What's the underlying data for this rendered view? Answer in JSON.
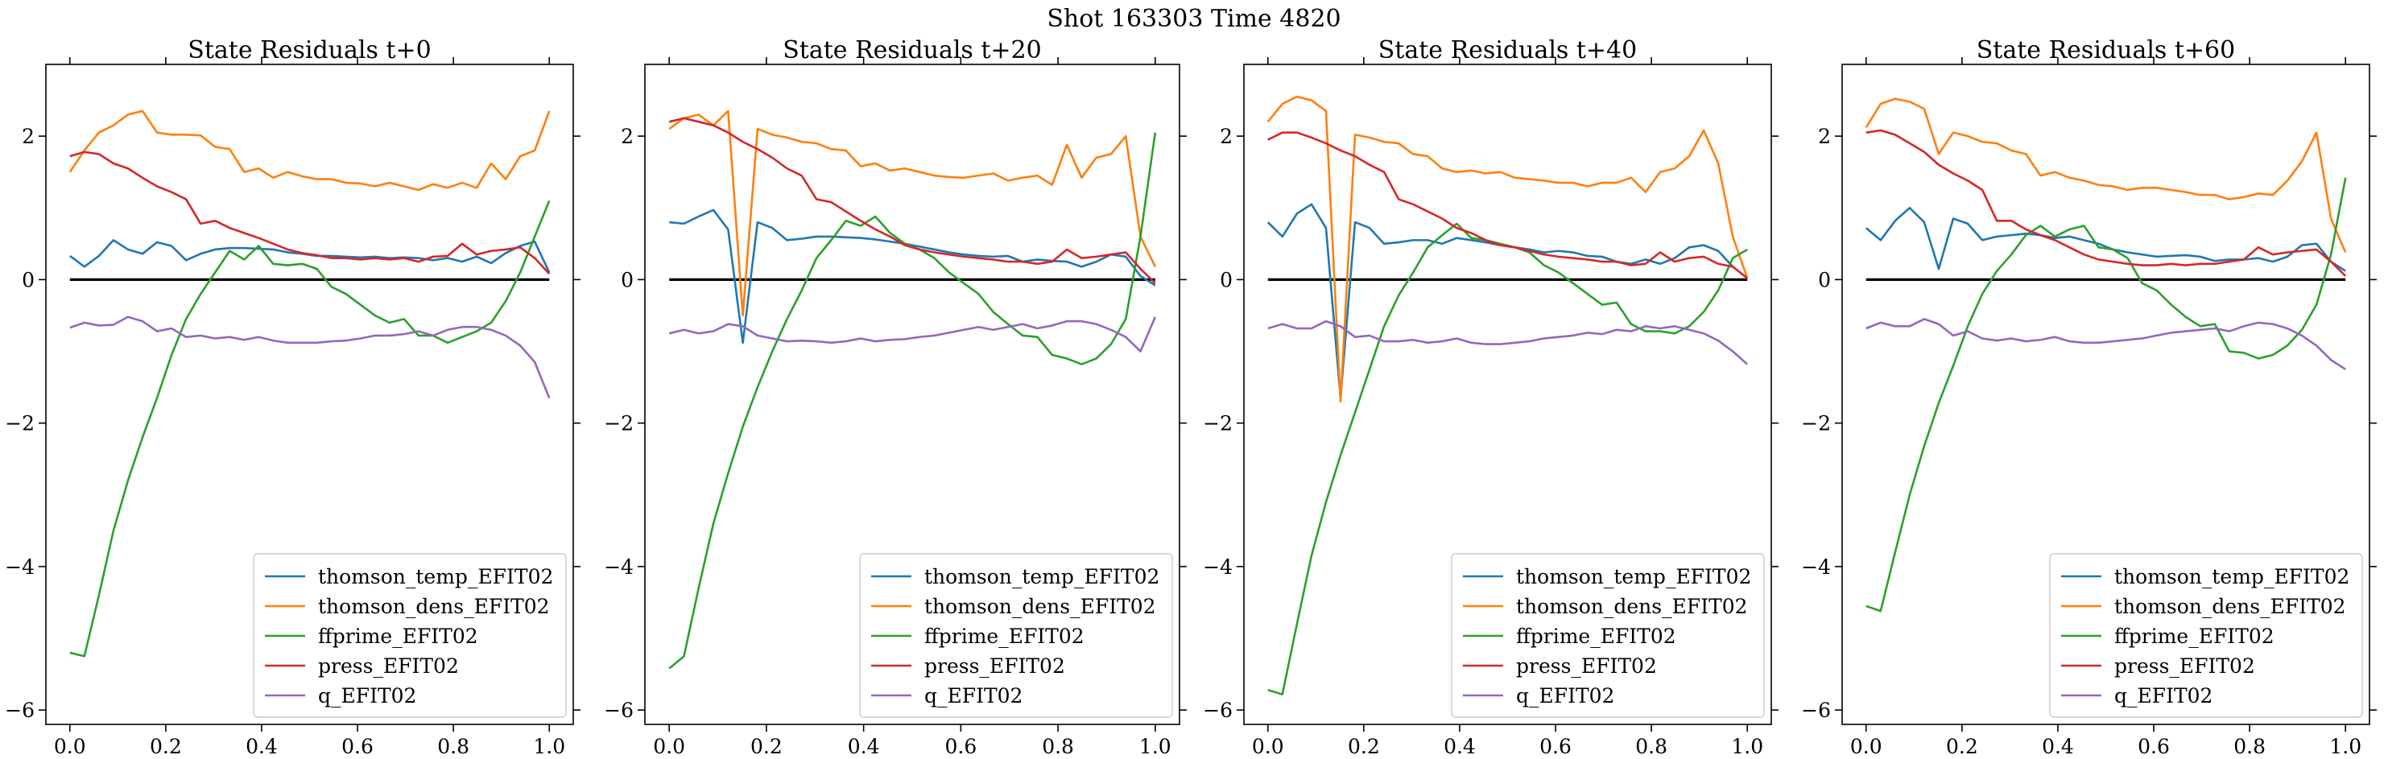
{
  "figure": {
    "suptitle": "Shot 163303   Time 4820"
  },
  "colors": {
    "thomson_temp": "#1f77b4",
    "thomson_dens": "#ff7f0e",
    "ffprime": "#2ca02c",
    "press": "#d62728",
    "q": "#9467bd",
    "zero_line": "#000000"
  },
  "chart_data": [
    {
      "type": "line",
      "title": "State Residuals t+0",
      "xlim": [
        -0.05,
        1.05
      ],
      "ylim": [
        -6.2,
        3.0
      ],
      "xticks": [
        "0.0",
        "0.2",
        "0.4",
        "0.6",
        "0.8",
        "1.0"
      ],
      "xtick_values": [
        0,
        0.2,
        0.4,
        0.6,
        0.8,
        1.0
      ],
      "yticks": [
        "−6",
        "−4",
        "−2",
        "0",
        "2"
      ],
      "ytick_values": [
        -6,
        -4,
        -2,
        0,
        2
      ],
      "legend_position": "lower-right",
      "zero_line": true,
      "x": [
        0.0,
        0.0303,
        0.0606,
        0.0909,
        0.1212,
        0.1515,
        0.1818,
        0.2121,
        0.2424,
        0.2727,
        0.303,
        0.3333,
        0.3636,
        0.3939,
        0.4242,
        0.4545,
        0.4848,
        0.5152,
        0.5455,
        0.5758,
        0.6061,
        0.6364,
        0.6667,
        0.697,
        0.7273,
        0.7576,
        0.7879,
        0.8182,
        0.8485,
        0.8788,
        0.9091,
        0.9394,
        0.9697,
        1.0
      ],
      "series": [
        {
          "name": "thomson_temp_EFIT02",
          "color_key": "thomson_temp",
          "values": [
            0.33,
            0.18,
            0.33,
            0.55,
            0.42,
            0.36,
            0.52,
            0.47,
            0.27,
            0.36,
            0.42,
            0.44,
            0.44,
            0.43,
            0.42,
            0.38,
            0.36,
            0.33,
            0.33,
            0.32,
            0.31,
            0.32,
            0.3,
            0.31,
            0.3,
            0.27,
            0.3,
            0.25,
            0.32,
            0.23,
            0.37,
            0.47,
            0.53,
            0.1
          ]
        },
        {
          "name": "thomson_dens_EFIT02",
          "color_key": "thomson_dens",
          "values": [
            1.5,
            1.8,
            2.05,
            2.15,
            2.3,
            2.35,
            2.05,
            2.02,
            2.02,
            2.01,
            1.85,
            1.82,
            1.5,
            1.55,
            1.42,
            1.5,
            1.44,
            1.4,
            1.4,
            1.35,
            1.34,
            1.3,
            1.35,
            1.3,
            1.25,
            1.33,
            1.28,
            1.35,
            1.28,
            1.62,
            1.4,
            1.72,
            1.8,
            2.35
          ]
        },
        {
          "name": "ffprime_EFIT02",
          "color_key": "ffprime",
          "values": [
            -5.2,
            -5.25,
            -4.4,
            -3.5,
            -2.8,
            -2.2,
            -1.65,
            -1.05,
            -0.55,
            -0.2,
            0.1,
            0.4,
            0.28,
            0.47,
            0.22,
            0.2,
            0.22,
            0.15,
            -0.1,
            -0.2,
            -0.35,
            -0.5,
            -0.6,
            -0.55,
            -0.78,
            -0.78,
            -0.88,
            -0.8,
            -0.72,
            -0.6,
            -0.3,
            0.1,
            0.6,
            1.1
          ]
        },
        {
          "name": "press_EFIT02",
          "color_key": "press",
          "values": [
            1.72,
            1.78,
            1.75,
            1.62,
            1.55,
            1.42,
            1.3,
            1.22,
            1.12,
            0.78,
            0.82,
            0.72,
            0.65,
            0.58,
            0.5,
            0.42,
            0.37,
            0.34,
            0.3,
            0.3,
            0.28,
            0.3,
            0.28,
            0.3,
            0.25,
            0.32,
            0.33,
            0.5,
            0.35,
            0.4,
            0.42,
            0.45,
            0.3,
            0.08
          ]
        },
        {
          "name": "q_EFIT02",
          "color_key": "q",
          "values": [
            -0.67,
            -0.6,
            -0.64,
            -0.63,
            -0.52,
            -0.58,
            -0.72,
            -0.68,
            -0.8,
            -0.78,
            -0.82,
            -0.8,
            -0.84,
            -0.8,
            -0.85,
            -0.88,
            -0.88,
            -0.88,
            -0.86,
            -0.85,
            -0.82,
            -0.78,
            -0.78,
            -0.76,
            -0.72,
            -0.78,
            -0.7,
            -0.66,
            -0.66,
            -0.7,
            -0.78,
            -0.92,
            -1.15,
            -1.65
          ]
        }
      ]
    },
    {
      "type": "line",
      "title": "State Residuals t+20",
      "xlim": [
        -0.05,
        1.05
      ],
      "ylim": [
        -6.2,
        3.0
      ],
      "xticks": [
        "0.0",
        "0.2",
        "0.4",
        "0.6",
        "0.8",
        "1.0"
      ],
      "xtick_values": [
        0,
        0.2,
        0.4,
        0.6,
        0.8,
        1.0
      ],
      "yticks": [
        "−6",
        "−4",
        "−2",
        "0",
        "2"
      ],
      "ytick_values": [
        -6,
        -4,
        -2,
        0,
        2
      ],
      "legend_position": "lower-right",
      "zero_line": true,
      "x": [
        0.0,
        0.0303,
        0.0606,
        0.0909,
        0.1212,
        0.1515,
        0.1818,
        0.2121,
        0.2424,
        0.2727,
        0.303,
        0.3333,
        0.3636,
        0.3939,
        0.4242,
        0.4545,
        0.4848,
        0.5152,
        0.5455,
        0.5758,
        0.6061,
        0.6364,
        0.6667,
        0.697,
        0.7273,
        0.7576,
        0.7879,
        0.8182,
        0.8485,
        0.8788,
        0.9091,
        0.9394,
        0.9697,
        1.0
      ],
      "series": [
        {
          "name": "thomson_temp_EFIT02",
          "color_key": "thomson_temp",
          "values": [
            0.8,
            0.78,
            0.88,
            0.97,
            0.7,
            -0.88,
            0.8,
            0.72,
            0.55,
            0.57,
            0.6,
            0.6,
            0.59,
            0.58,
            0.56,
            0.53,
            0.5,
            0.46,
            0.42,
            0.38,
            0.35,
            0.33,
            0.32,
            0.33,
            0.25,
            0.28,
            0.26,
            0.25,
            0.18,
            0.25,
            0.35,
            0.32,
            0.05,
            -0.08
          ]
        },
        {
          "name": "thomson_dens_EFIT02",
          "color_key": "thomson_dens",
          "values": [
            2.1,
            2.25,
            2.3,
            2.15,
            2.35,
            -0.5,
            2.1,
            2.02,
            1.98,
            1.92,
            1.9,
            1.82,
            1.8,
            1.58,
            1.62,
            1.52,
            1.55,
            1.5,
            1.45,
            1.43,
            1.42,
            1.45,
            1.48,
            1.38,
            1.42,
            1.45,
            1.32,
            1.88,
            1.42,
            1.7,
            1.75,
            2.0,
            0.6,
            0.18
          ]
        },
        {
          "name": "ffprime_EFIT02",
          "color_key": "ffprime",
          "values": [
            -5.42,
            -5.25,
            -4.3,
            -3.4,
            -2.7,
            -2.05,
            -1.5,
            -1.0,
            -0.55,
            -0.15,
            0.3,
            0.55,
            0.82,
            0.75,
            0.88,
            0.65,
            0.5,
            0.42,
            0.3,
            0.1,
            -0.05,
            -0.2,
            -0.45,
            -0.62,
            -0.78,
            -0.8,
            -1.05,
            -1.1,
            -1.18,
            -1.1,
            -0.9,
            -0.55,
            0.6,
            2.05
          ]
        },
        {
          "name": "press_EFIT02",
          "color_key": "press",
          "values": [
            2.2,
            2.25,
            2.2,
            2.15,
            2.05,
            1.92,
            1.82,
            1.7,
            1.55,
            1.45,
            1.12,
            1.08,
            0.95,
            0.82,
            0.7,
            0.6,
            0.48,
            0.42,
            0.38,
            0.35,
            0.32,
            0.3,
            0.28,
            0.25,
            0.25,
            0.22,
            0.25,
            0.42,
            0.3,
            0.32,
            0.35,
            0.38,
            0.15,
            -0.05
          ]
        },
        {
          "name": "q_EFIT02",
          "color_key": "q",
          "values": [
            -0.75,
            -0.7,
            -0.75,
            -0.72,
            -0.62,
            -0.65,
            -0.78,
            -0.82,
            -0.86,
            -0.85,
            -0.86,
            -0.88,
            -0.86,
            -0.82,
            -0.86,
            -0.84,
            -0.83,
            -0.8,
            -0.78,
            -0.74,
            -0.7,
            -0.66,
            -0.7,
            -0.66,
            -0.62,
            -0.68,
            -0.64,
            -0.58,
            -0.58,
            -0.62,
            -0.7,
            -0.8,
            -1.0,
            -0.52
          ]
        }
      ]
    },
    {
      "type": "line",
      "title": "State Residuals t+40",
      "xlim": [
        -0.05,
        1.05
      ],
      "ylim": [
        -6.2,
        3.0
      ],
      "xticks": [
        "0.0",
        "0.2",
        "0.4",
        "0.6",
        "0.8",
        "1.0"
      ],
      "xtick_values": [
        0,
        0.2,
        0.4,
        0.6,
        0.8,
        1.0
      ],
      "yticks": [
        "−6",
        "−4",
        "−2",
        "0",
        "2"
      ],
      "ytick_values": [
        -6,
        -4,
        -2,
        0,
        2
      ],
      "legend_position": "lower-right",
      "zero_line": true,
      "x": [
        0.0,
        0.0303,
        0.0606,
        0.0909,
        0.1212,
        0.1515,
        0.1818,
        0.2121,
        0.2424,
        0.2727,
        0.303,
        0.3333,
        0.3636,
        0.3939,
        0.4242,
        0.4545,
        0.4848,
        0.5152,
        0.5455,
        0.5758,
        0.6061,
        0.6364,
        0.6667,
        0.697,
        0.7273,
        0.7576,
        0.7879,
        0.8182,
        0.8485,
        0.8788,
        0.9091,
        0.9394,
        0.9697,
        1.0
      ],
      "series": [
        {
          "name": "thomson_temp_EFIT02",
          "color_key": "thomson_temp",
          "values": [
            0.8,
            0.6,
            0.92,
            1.05,
            0.72,
            -1.65,
            0.8,
            0.72,
            0.5,
            0.52,
            0.55,
            0.55,
            0.5,
            0.58,
            0.55,
            0.52,
            0.48,
            0.45,
            0.42,
            0.38,
            0.4,
            0.38,
            0.33,
            0.32,
            0.25,
            0.22,
            0.28,
            0.22,
            0.3,
            0.45,
            0.48,
            0.4,
            0.18,
            0.02
          ]
        },
        {
          "name": "thomson_dens_EFIT02",
          "color_key": "thomson_dens",
          "values": [
            2.2,
            2.45,
            2.55,
            2.5,
            2.35,
            -1.7,
            2.02,
            1.98,
            1.92,
            1.9,
            1.75,
            1.72,
            1.55,
            1.5,
            1.52,
            1.48,
            1.5,
            1.42,
            1.4,
            1.38,
            1.35,
            1.35,
            1.3,
            1.35,
            1.35,
            1.42,
            1.22,
            1.5,
            1.55,
            1.72,
            2.08,
            1.62,
            0.6,
            0.02
          ]
        },
        {
          "name": "ffprime_EFIT02",
          "color_key": "ffprime",
          "values": [
            -5.72,
            -5.78,
            -4.8,
            -3.85,
            -3.1,
            -2.45,
            -1.85,
            -1.25,
            -0.65,
            -0.22,
            0.1,
            0.45,
            0.62,
            0.78,
            0.58,
            0.55,
            0.5,
            0.45,
            0.38,
            0.2,
            0.1,
            -0.05,
            -0.2,
            -0.35,
            -0.32,
            -0.62,
            -0.72,
            -0.72,
            -0.75,
            -0.65,
            -0.45,
            -0.15,
            0.3,
            0.42
          ]
        },
        {
          "name": "press_EFIT02",
          "color_key": "press",
          "values": [
            1.95,
            2.05,
            2.05,
            1.98,
            1.9,
            1.8,
            1.72,
            1.6,
            1.5,
            1.12,
            1.05,
            0.95,
            0.85,
            0.72,
            0.65,
            0.55,
            0.48,
            0.45,
            0.4,
            0.35,
            0.32,
            0.3,
            0.28,
            0.25,
            0.25,
            0.2,
            0.22,
            0.38,
            0.25,
            0.3,
            0.32,
            0.22,
            0.18,
            0.02
          ]
        },
        {
          "name": "q_EFIT02",
          "color_key": "q",
          "values": [
            -0.68,
            -0.62,
            -0.68,
            -0.68,
            -0.58,
            -0.65,
            -0.8,
            -0.78,
            -0.86,
            -0.86,
            -0.84,
            -0.88,
            -0.86,
            -0.82,
            -0.88,
            -0.9,
            -0.9,
            -0.88,
            -0.86,
            -0.82,
            -0.8,
            -0.78,
            -0.74,
            -0.76,
            -0.7,
            -0.72,
            -0.65,
            -0.68,
            -0.65,
            -0.7,
            -0.75,
            -0.85,
            -1.0,
            -1.18
          ]
        }
      ]
    },
    {
      "type": "line",
      "title": "State Residuals t+60",
      "xlim": [
        -0.05,
        1.05
      ],
      "ylim": [
        -6.2,
        3.0
      ],
      "xticks": [
        "0.0",
        "0.2",
        "0.4",
        "0.6",
        "0.8",
        "1.0"
      ],
      "xtick_values": [
        0,
        0.2,
        0.4,
        0.6,
        0.8,
        1.0
      ],
      "yticks": [
        "−6",
        "−4",
        "−2",
        "0",
        "2"
      ],
      "ytick_values": [
        -6,
        -4,
        -2,
        0,
        2
      ],
      "legend_position": "lower-right",
      "zero_line": true,
      "x": [
        0.0,
        0.0303,
        0.0606,
        0.0909,
        0.1212,
        0.1515,
        0.1818,
        0.2121,
        0.2424,
        0.2727,
        0.303,
        0.3333,
        0.3636,
        0.3939,
        0.4242,
        0.4545,
        0.4848,
        0.5152,
        0.5455,
        0.5758,
        0.6061,
        0.6364,
        0.6667,
        0.697,
        0.7273,
        0.7576,
        0.7879,
        0.8182,
        0.8485,
        0.8788,
        0.9091,
        0.9394,
        0.9697,
        1.0
      ],
      "series": [
        {
          "name": "thomson_temp_EFIT02",
          "color_key": "thomson_temp",
          "values": [
            0.72,
            0.55,
            0.82,
            1.0,
            0.8,
            0.15,
            0.85,
            0.78,
            0.55,
            0.6,
            0.62,
            0.64,
            0.62,
            0.58,
            0.6,
            0.55,
            0.5,
            0.42,
            0.38,
            0.35,
            0.32,
            0.33,
            0.34,
            0.32,
            0.26,
            0.28,
            0.28,
            0.3,
            0.25,
            0.32,
            0.48,
            0.5,
            0.25,
            0.12
          ]
        },
        {
          "name": "thomson_dens_EFIT02",
          "color_key": "thomson_dens",
          "values": [
            2.12,
            2.45,
            2.52,
            2.48,
            2.38,
            1.75,
            2.05,
            2.0,
            1.92,
            1.9,
            1.8,
            1.75,
            1.45,
            1.5,
            1.42,
            1.38,
            1.32,
            1.3,
            1.25,
            1.28,
            1.28,
            1.25,
            1.22,
            1.18,
            1.18,
            1.12,
            1.15,
            1.2,
            1.18,
            1.38,
            1.65,
            2.05,
            0.85,
            0.38
          ]
        },
        {
          "name": "ffprime_EFIT02",
          "color_key": "ffprime",
          "values": [
            -4.55,
            -4.62,
            -3.8,
            -3.0,
            -2.32,
            -1.72,
            -1.2,
            -0.65,
            -0.2,
            0.12,
            0.35,
            0.62,
            0.75,
            0.6,
            0.7,
            0.75,
            0.45,
            0.42,
            0.3,
            -0.05,
            -0.15,
            -0.35,
            -0.52,
            -0.65,
            -0.62,
            -1.0,
            -1.02,
            -1.1,
            -1.05,
            -0.92,
            -0.7,
            -0.35,
            0.35,
            1.42
          ]
        },
        {
          "name": "press_EFIT02",
          "color_key": "press",
          "values": [
            2.05,
            2.08,
            2.02,
            1.9,
            1.78,
            1.6,
            1.48,
            1.38,
            1.25,
            0.82,
            0.82,
            0.7,
            0.62,
            0.55,
            0.45,
            0.35,
            0.28,
            0.25,
            0.22,
            0.2,
            0.2,
            0.22,
            0.2,
            0.22,
            0.22,
            0.25,
            0.28,
            0.45,
            0.35,
            0.38,
            0.4,
            0.42,
            0.25,
            0.05
          ]
        },
        {
          "name": "q_EFIT02",
          "color_key": "q",
          "values": [
            -0.68,
            -0.6,
            -0.65,
            -0.65,
            -0.55,
            -0.62,
            -0.78,
            -0.72,
            -0.82,
            -0.85,
            -0.82,
            -0.86,
            -0.84,
            -0.8,
            -0.86,
            -0.88,
            -0.88,
            -0.86,
            -0.84,
            -0.82,
            -0.78,
            -0.74,
            -0.72,
            -0.7,
            -0.68,
            -0.72,
            -0.65,
            -0.6,
            -0.62,
            -0.68,
            -0.78,
            -0.92,
            -1.12,
            -1.25
          ]
        }
      ]
    }
  ]
}
